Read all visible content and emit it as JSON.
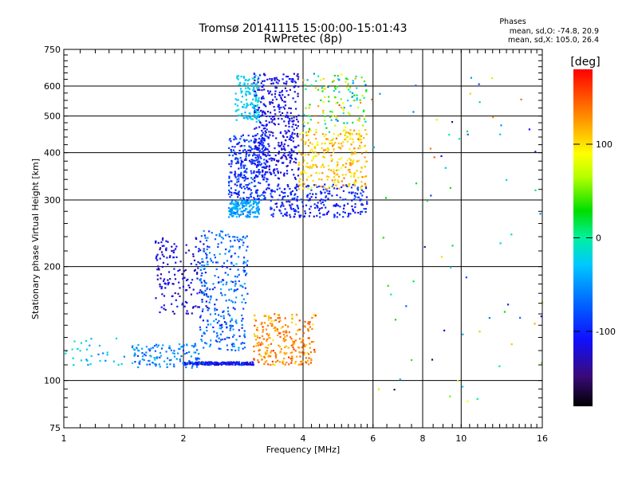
{
  "chart_data": {
    "type": "scatter",
    "title": "Tromsø 20141115 15:00:00-15:01:43",
    "subtitle": "RwPretec (8p)",
    "xlabel": "Frequency [MHz]",
    "ylabel": "Stationary phase Virtual Height [km]",
    "x_scale": "log",
    "y_scale": "log",
    "xlim": [
      1,
      16
    ],
    "ylim": [
      75,
      750
    ],
    "x_ticks": [
      1,
      2,
      4,
      6,
      8,
      10,
      16
    ],
    "y_ticks": [
      75,
      100,
      200,
      300,
      400,
      500,
      600,
      750
    ],
    "x_grid": [
      2,
      4,
      6,
      8,
      10
    ],
    "y_grid": [
      100,
      200,
      300,
      400,
      500,
      600
    ],
    "grid": true,
    "phase_info": {
      "heading": "Phases",
      "line_o": "mean, sd,O: -74.8, 20.9",
      "line_x": "mean, sd,X: 105.0, 26.4"
    },
    "colorbar": {
      "label": "[deg]",
      "range": [
        -180,
        180
      ],
      "ticks": [
        100,
        0,
        -100
      ]
    },
    "clusters": [
      {
        "f": [
          2.0,
          3.0
        ],
        "h": [
          110,
          112
        ],
        "phase": -110,
        "spread": 40,
        "n": 220
      },
      {
        "f": [
          3.0,
          4.3
        ],
        "h": [
          110,
          150
        ],
        "phase": 130,
        "spread": 40,
        "n": 260
      },
      {
        "f": [
          1.7,
          2.3
        ],
        "h": [
          150,
          240
        ],
        "phase": -120,
        "spread": 30,
        "n": 170
      },
      {
        "f": [
          2.2,
          2.9
        ],
        "h": [
          120,
          250
        ],
        "phase": -70,
        "spread": 50,
        "n": 300
      },
      {
        "f": [
          1.5,
          2.2
        ],
        "h": [
          108,
          125
        ],
        "phase": -60,
        "spread": 40,
        "n": 120
      },
      {
        "f": [
          1.0,
          1.5
        ],
        "h": [
          108,
          130
        ],
        "phase": -30,
        "spread": 40,
        "n": 35
      },
      {
        "f": [
          2.6,
          3.1
        ],
        "h": [
          270,
          300
        ],
        "phase": -45,
        "spread": 25,
        "n": 170
      },
      {
        "f": [
          2.6,
          3.3
        ],
        "h": [
          300,
          450
        ],
        "phase": -95,
        "spread": 35,
        "n": 320
      },
      {
        "f": [
          3.3,
          5.8
        ],
        "h": [
          270,
          330
        ],
        "phase": -100,
        "spread": 30,
        "n": 260
      },
      {
        "f": [
          3.0,
          3.9
        ],
        "h": [
          340,
          650
        ],
        "phase": -115,
        "spread": 25,
        "n": 400
      },
      {
        "f": [
          3.9,
          5.8
        ],
        "h": [
          320,
          460
        ],
        "phase": 110,
        "spread": 40,
        "n": 280
      },
      {
        "f": [
          2.7,
          3.1
        ],
        "h": [
          480,
          640
        ],
        "phase": -25,
        "spread": 20,
        "n": 130
      },
      {
        "f": [
          4.0,
          5.8
        ],
        "h": [
          450,
          650
        ],
        "phase": 40,
        "spread": 120,
        "n": 130
      },
      {
        "f": [
          5.8,
          16.0
        ],
        "h": [
          85,
          650
        ],
        "phase": 0,
        "spread": 170,
        "n": 70
      }
    ]
  }
}
